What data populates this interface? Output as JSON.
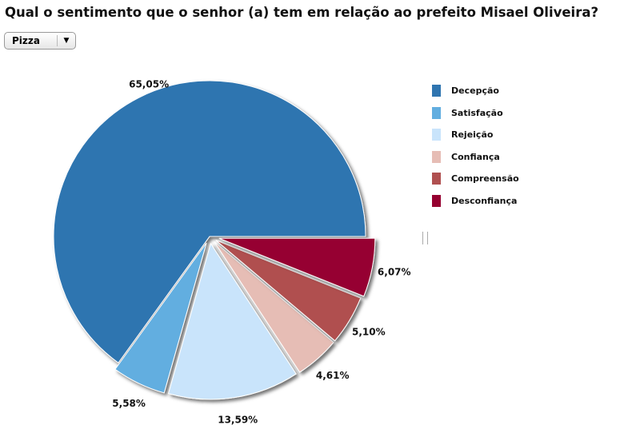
{
  "title": "Qual o sentimento que o senhor (a) tem em relação ao prefeito Misael Oliveira?",
  "chart_type_select": {
    "value": "Pizza",
    "icon": "chevron-down-icon"
  },
  "chart_data": {
    "type": "pie",
    "title": "Qual o sentimento que o senhor (a) tem em relação ao prefeito Misael Oliveira?",
    "categories": [
      "Decepção",
      "Satisfação",
      "Rejeição",
      "Confiança",
      "Compreensão",
      "Desconfiança"
    ],
    "values": [
      65.05,
      5.58,
      13.59,
      4.61,
      5.1,
      6.07
    ],
    "labels": [
      "65,05%",
      "5,58%",
      "13,59%",
      "4,61%",
      "5,10%",
      "6,07%"
    ],
    "colors": [
      "#2f75b0",
      "#62aee0",
      "#c9e4fb",
      "#e6bdb5",
      "#b05050",
      "#960030"
    ],
    "legend": "right"
  }
}
